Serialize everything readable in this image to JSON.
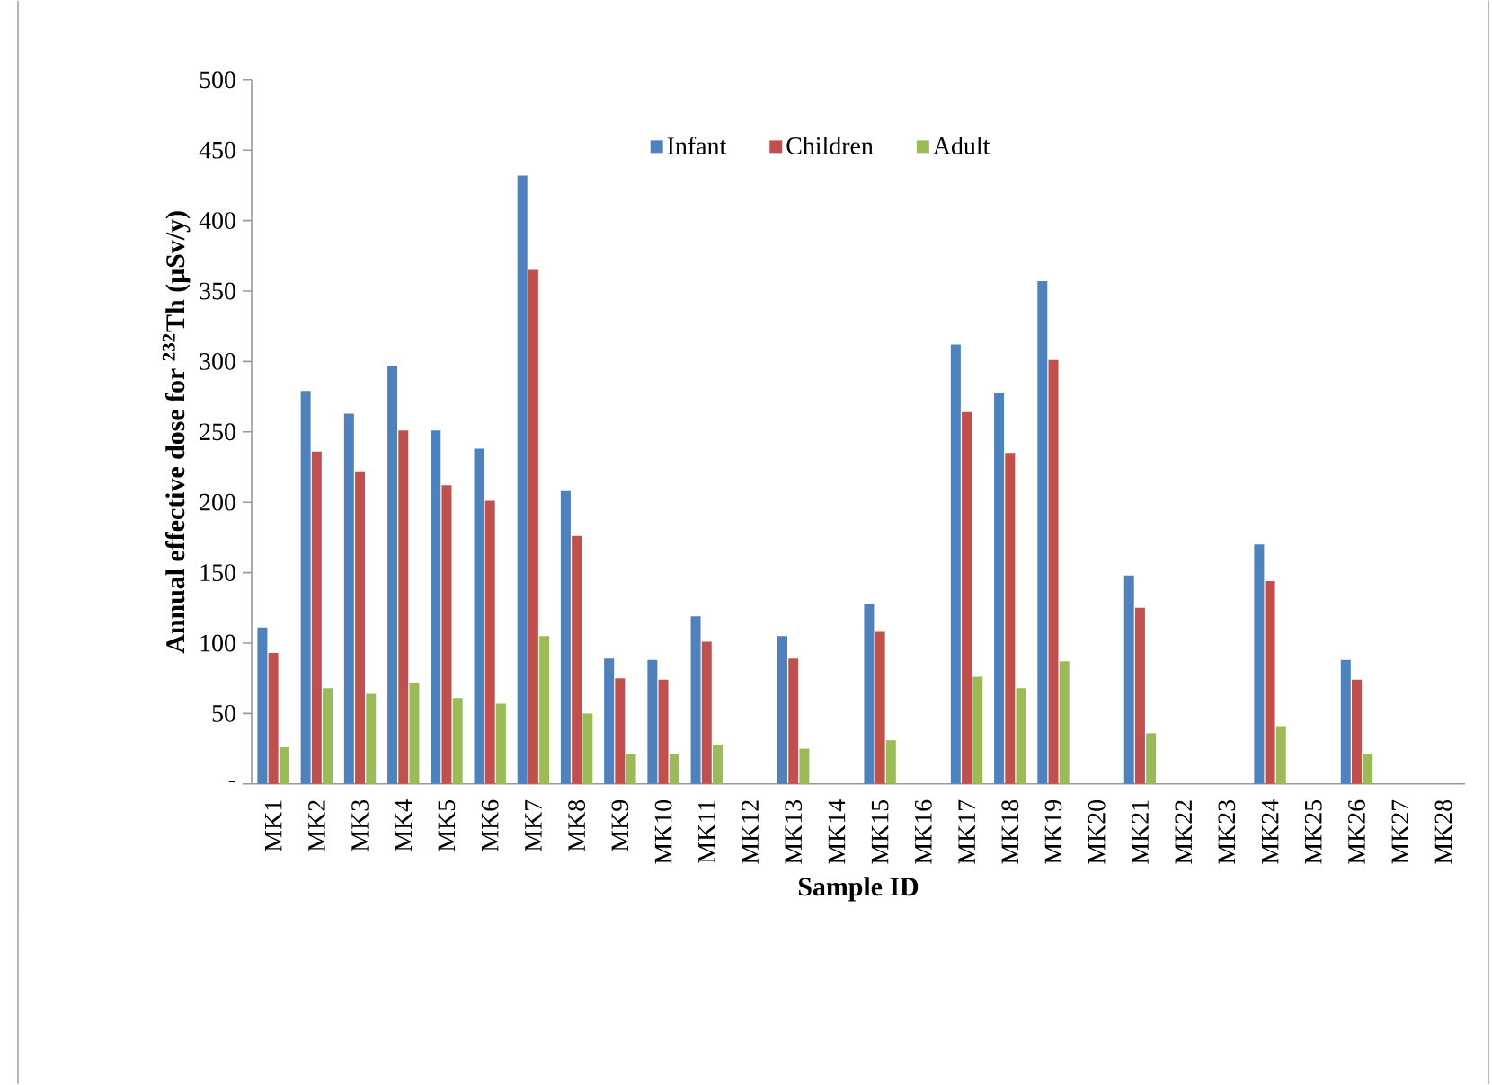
{
  "chart_data": {
    "type": "bar",
    "xlabel": "Sample ID",
    "ylabel": "Annual effective dose for $^{232}$Th (µSv/y)",
    "categories": [
      "MK1",
      "MK2",
      "MK3",
      "MK4",
      "MK5",
      "MK6",
      "MK7",
      "MK8",
      "MK9",
      "MK10",
      "MK11",
      "MK12",
      "MK13",
      "MK14",
      "MK15",
      "MK16",
      "MK17",
      "MK18",
      "MK19",
      "MK20",
      "MK21",
      "MK22",
      "MK23",
      "MK24",
      "MK25",
      "MK26",
      "MK27",
      "MK28"
    ],
    "series": [
      {
        "name": "Infant",
        "color": "#4f81bd",
        "values": [
          111,
          279,
          263,
          297,
          251,
          238,
          432,
          208,
          89,
          88,
          119,
          null,
          105,
          null,
          128,
          null,
          312,
          278,
          357,
          null,
          148,
          null,
          null,
          170,
          null,
          88,
          null,
          null
        ]
      },
      {
        "name": "Children",
        "color": "#c0504d",
        "values": [
          93,
          236,
          222,
          251,
          212,
          201,
          365,
          176,
          75,
          74,
          101,
          null,
          89,
          null,
          108,
          null,
          264,
          235,
          301,
          null,
          125,
          null,
          null,
          144,
          null,
          74,
          null,
          null
        ]
      },
      {
        "name": "Adult",
        "color": "#9bbb59",
        "values": [
          26,
          68,
          64,
          72,
          61,
          57,
          105,
          50,
          21,
          21,
          28,
          null,
          25,
          null,
          31,
          null,
          76,
          68,
          87,
          null,
          36,
          null,
          null,
          41,
          null,
          21,
          null,
          null
        ]
      }
    ],
    "ylim": [
      0,
      500
    ],
    "yticks": [
      {
        "value": 0,
        "label": "-"
      },
      50,
      100,
      150,
      200,
      250,
      300,
      350,
      400,
      450,
      500
    ],
    "grid": false,
    "legend": "top"
  }
}
